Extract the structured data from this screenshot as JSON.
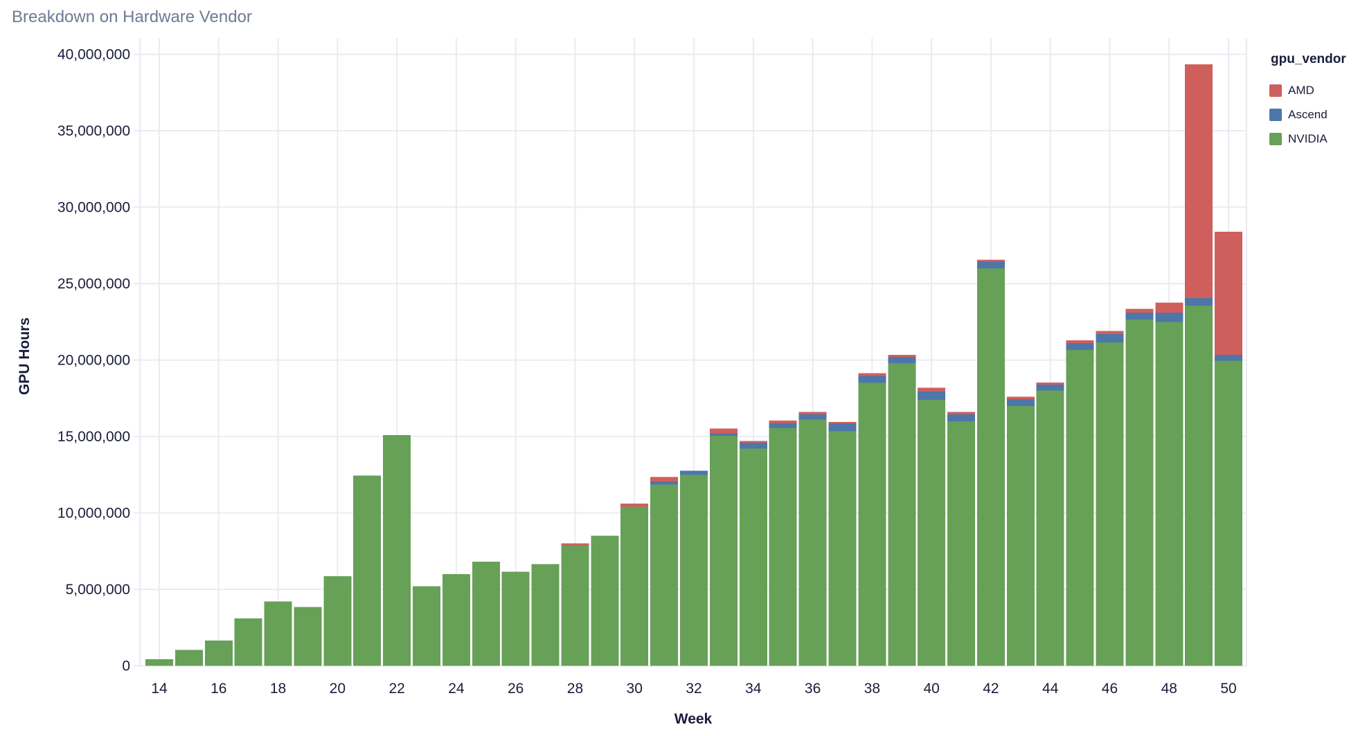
{
  "chart_data": {
    "type": "bar",
    "stacked": true,
    "title": "Breakdown on Hardware Vendor",
    "xlabel": "Week",
    "ylabel": "GPU Hours",
    "legend_title": "gpu_vendor",
    "legend_position": "right",
    "legend_items": [
      "AMD",
      "Ascend",
      "NVIDIA"
    ],
    "grid": true,
    "ylim": [
      0,
      40000000
    ],
    "xlim_weeks": [
      14,
      50
    ],
    "x_weeks": [
      14,
      15,
      16,
      17,
      18,
      19,
      20,
      21,
      22,
      23,
      24,
      25,
      26,
      27,
      28,
      29,
      30,
      31,
      32,
      33,
      34,
      35,
      36,
      37,
      38,
      39,
      40,
      41,
      42,
      43,
      44,
      45,
      46,
      47,
      48,
      49,
      50
    ],
    "series": [
      {
        "name": "NVIDIA",
        "color": "#67a057",
        "values": [
          420000,
          1050000,
          1650000,
          3100000,
          4200000,
          3850000,
          5850000,
          12450000,
          15100000,
          5200000,
          6000000,
          6800000,
          6150000,
          6650000,
          7850000,
          8500000,
          10400000,
          11850000,
          12500000,
          15050000,
          14200000,
          15550000,
          16100000,
          15350000,
          18500000,
          19800000,
          17400000,
          16000000,
          26000000,
          17000000,
          18000000,
          20650000,
          21150000,
          22650000,
          22500000,
          23550000,
          19950000
        ]
      },
      {
        "name": "Ascend",
        "color": "#4d77a8",
        "values": [
          0,
          0,
          0,
          0,
          0,
          0,
          0,
          0,
          0,
          0,
          0,
          0,
          0,
          0,
          0,
          0,
          0,
          200000,
          250000,
          150000,
          400000,
          300000,
          350000,
          500000,
          450000,
          400000,
          550000,
          450000,
          450000,
          450000,
          400000,
          450000,
          550000,
          450000,
          600000,
          500000,
          400000
        ]
      },
      {
        "name": "AMD",
        "color": "#cf5f5c",
        "values": [
          0,
          0,
          0,
          0,
          0,
          0,
          0,
          0,
          0,
          0,
          0,
          0,
          0,
          0,
          170000,
          0,
          200000,
          300000,
          0,
          320000,
          100000,
          200000,
          150000,
          100000,
          200000,
          150000,
          250000,
          150000,
          100000,
          150000,
          120000,
          200000,
          200000,
          250000,
          650000,
          15300000,
          8050000
        ]
      }
    ],
    "ytick_values": [
      0,
      5000000,
      10000000,
      15000000,
      20000000,
      25000000,
      30000000,
      35000000,
      40000000
    ],
    "ytick_labels": [
      "0",
      "5,000,000",
      "10,000,000",
      "15,000,000",
      "20,000,000",
      "25,000,000",
      "30,000,000",
      "35,000,000",
      "40,000,000"
    ],
    "xtick_values": [
      14,
      16,
      18,
      20,
      22,
      24,
      26,
      28,
      30,
      32,
      34,
      36,
      38,
      40,
      42,
      44,
      46,
      48,
      50
    ],
    "xtick_labels": [
      "14",
      "16",
      "18",
      "20",
      "22",
      "24",
      "26",
      "28",
      "30",
      "32",
      "34",
      "36",
      "38",
      "40",
      "42",
      "44",
      "46",
      "48",
      "50"
    ],
    "grid_color": "#e9e9f1",
    "text_color": "#191c3b",
    "title_color": "#6e7a94"
  }
}
